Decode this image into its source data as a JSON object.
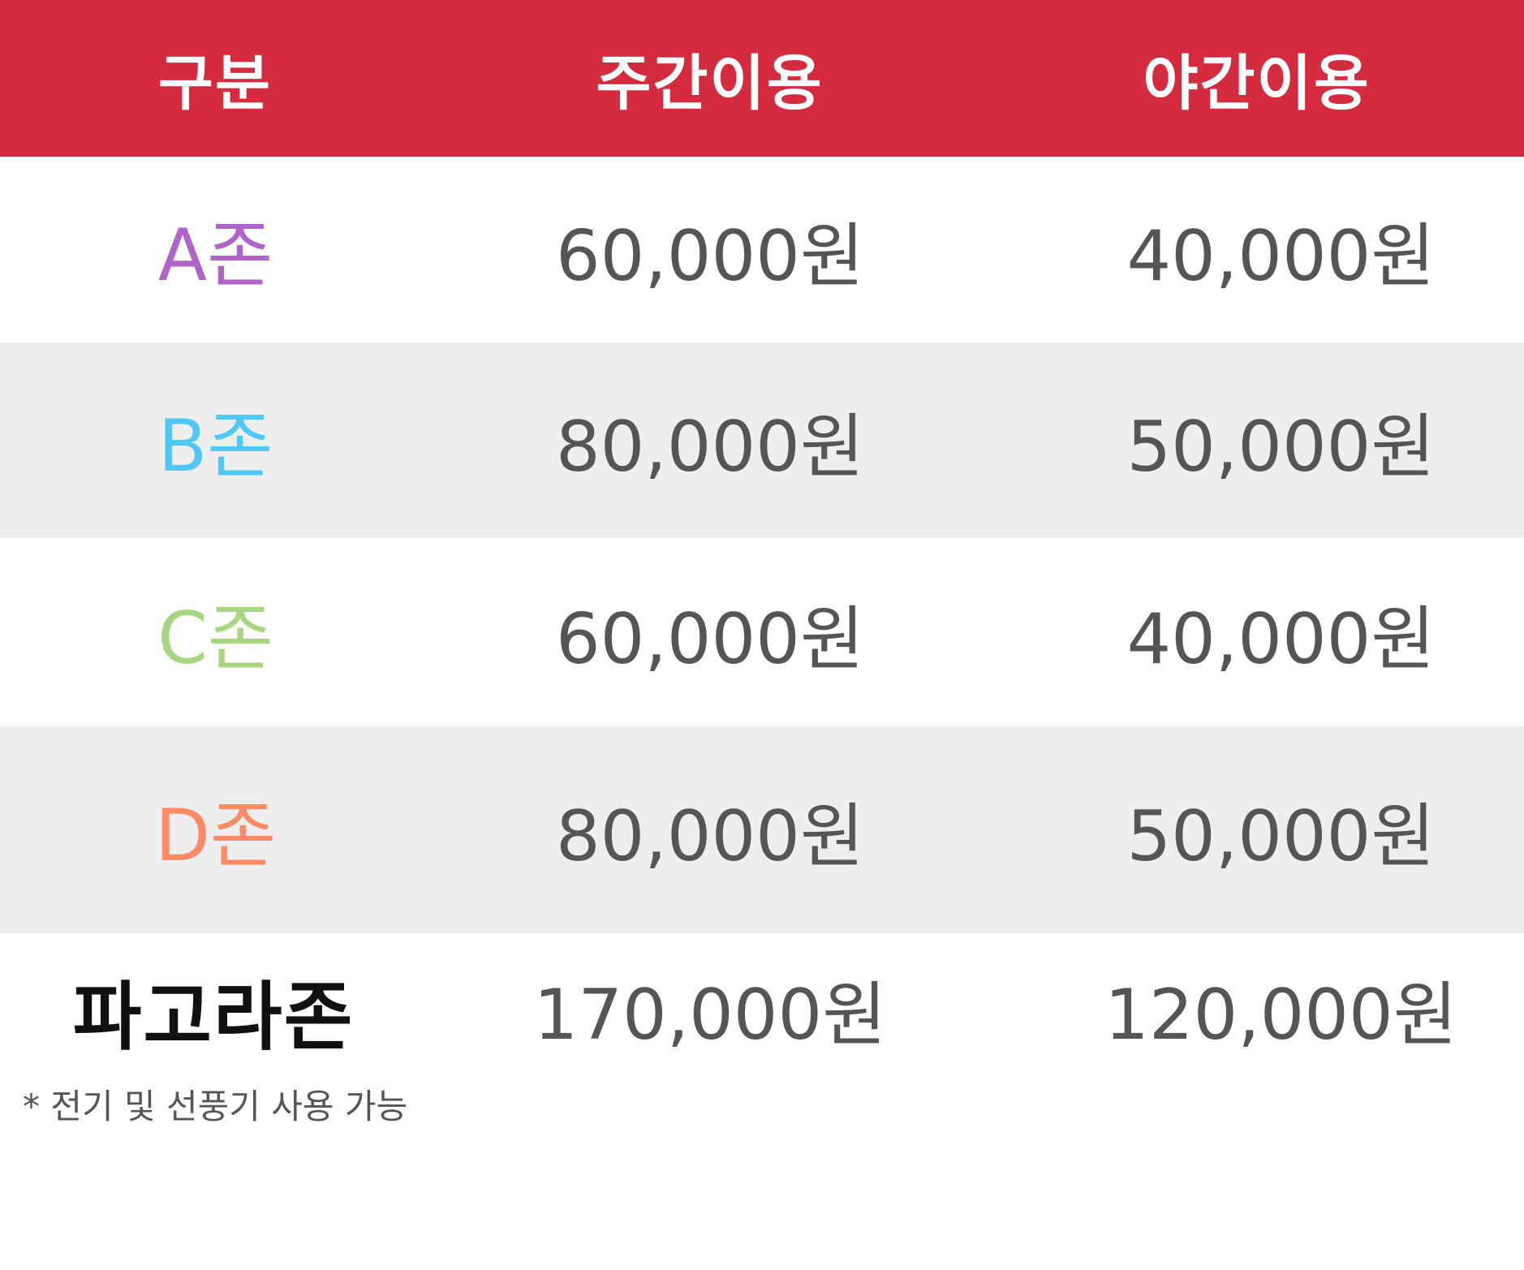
{
  "header": {
    "col1": "구분",
    "col2": "주간이용",
    "col3": "야간이용"
  },
  "colors": {
    "header_bg": "#d42b3e",
    "zone_a": "#b064c9",
    "zone_b": "#4fc8f5",
    "zone_c": "#a8d580",
    "zone_d": "#ff8a65",
    "price_text": "#555555"
  },
  "rows": [
    {
      "zone": "A존",
      "day": "60,000원",
      "night": "40,000원"
    },
    {
      "zone": "B존",
      "day": "80,000원",
      "night": "50,000원"
    },
    {
      "zone": "C존",
      "day": "60,000원",
      "night": "40,000원"
    },
    {
      "zone": "D존",
      "day": "80,000원",
      "night": "50,000원"
    }
  ],
  "pagora": {
    "zone": "파고라존",
    "note": "* 전기 및 선풍기 사용 가능",
    "day": "170,000원",
    "night": "120,000원"
  }
}
